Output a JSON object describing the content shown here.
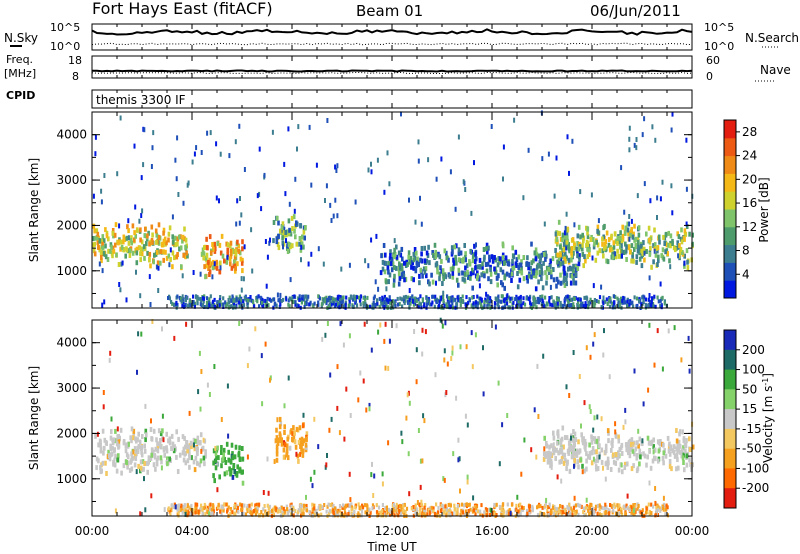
{
  "header": {
    "station": "Fort Hays East (fitACF)",
    "beam": "Beam 01",
    "date": "06/Jun/2011"
  },
  "strip_labels": {
    "nsky": "N.Sky",
    "freq_line1": "Freq.",
    "freq_line2": "[MHz]",
    "cpid": "CPID",
    "nsearch": "N.Search",
    "nave": "Nave",
    "cpid_value": "themis 3300 IF"
  },
  "strip_ticks": {
    "nsky_top": "10^5",
    "nsky_bottom": "10^0",
    "freq_top": "18",
    "freq_bottom": "8",
    "nave_top": "60",
    "nave_bottom": "0"
  },
  "colors": {
    "power": [
      "#0018e0",
      "#1e50b8",
      "#3c7e90",
      "#4e9c6c",
      "#7fc46a",
      "#cfd22e",
      "#f4b817",
      "#f08a16",
      "#ec5a14",
      "#e31e10"
    ],
    "velocity": [
      "#e31e10",
      "#ff6a00",
      "#f6a020",
      "#f4c860",
      "#c8c8c8",
      "#86d26a",
      "#3aa83a",
      "#1e6a66",
      "#1a2ab8"
    ]
  },
  "chart_data": [
    {
      "type": "heatmap",
      "title": "",
      "ylabel": "Slant Range [km]",
      "xlabel": "",
      "ylim": [
        180,
        4500
      ],
      "yticks": [
        "1000",
        "2000",
        "3000",
        "4000"
      ],
      "xticks": [
        "00:00",
        "04:00",
        "08:00",
        "12:00",
        "16:00",
        "20:00",
        "00:00"
      ],
      "colorbar": {
        "label": "Power [dB]",
        "ticks": [
          "4",
          "8",
          "12",
          "16",
          "20",
          "24",
          "28"
        ],
        "range": [
          0,
          30
        ]
      },
      "features": [
        {
          "t_start": 0.0,
          "t_end": 3.8,
          "range_km": 1550,
          "intensity_db": 18
        },
        {
          "t_start": 4.3,
          "t_end": 6.0,
          "range_km": 1300,
          "intensity_db": 20
        },
        {
          "t_start": 7.2,
          "t_end": 8.5,
          "range_km": 1800,
          "intensity_db": 10
        },
        {
          "t_start": 11.5,
          "t_end": 19.5,
          "range_km": 1100,
          "intensity_db": 6
        },
        {
          "t_start": 18.5,
          "t_end": 24.0,
          "range_km": 1550,
          "intensity_db": 14
        }
      ]
    },
    {
      "type": "heatmap",
      "title": "",
      "ylabel": "Slant Range [km]",
      "xlabel": "Time UT",
      "ylim": [
        180,
        4500
      ],
      "yticks": [
        "1000",
        "2000",
        "3000",
        "4000"
      ],
      "xticks": [
        "00:00",
        "04:00",
        "08:00",
        "12:00",
        "16:00",
        "20:00",
        "00:00"
      ],
      "colorbar": {
        "label": "Velocity [m s^-1]",
        "ticks": [
          "200",
          "100",
          "50",
          "15",
          "-15",
          "-50",
          "-100",
          "-200"
        ],
        "range": [
          -250,
          250
        ]
      },
      "features": [
        {
          "t_start": 0.0,
          "t_end": 4.5,
          "range_km": 1600,
          "velocity_ms": 0
        },
        {
          "t_start": 4.8,
          "t_end": 6.0,
          "range_km": 1300,
          "velocity_ms": 60
        },
        {
          "t_start": 7.3,
          "t_end": 8.6,
          "range_km": 1800,
          "velocity_ms": -40
        },
        {
          "t_start": 18.0,
          "t_end": 24.0,
          "range_km": 1600,
          "velocity_ms": 0
        }
      ]
    }
  ]
}
